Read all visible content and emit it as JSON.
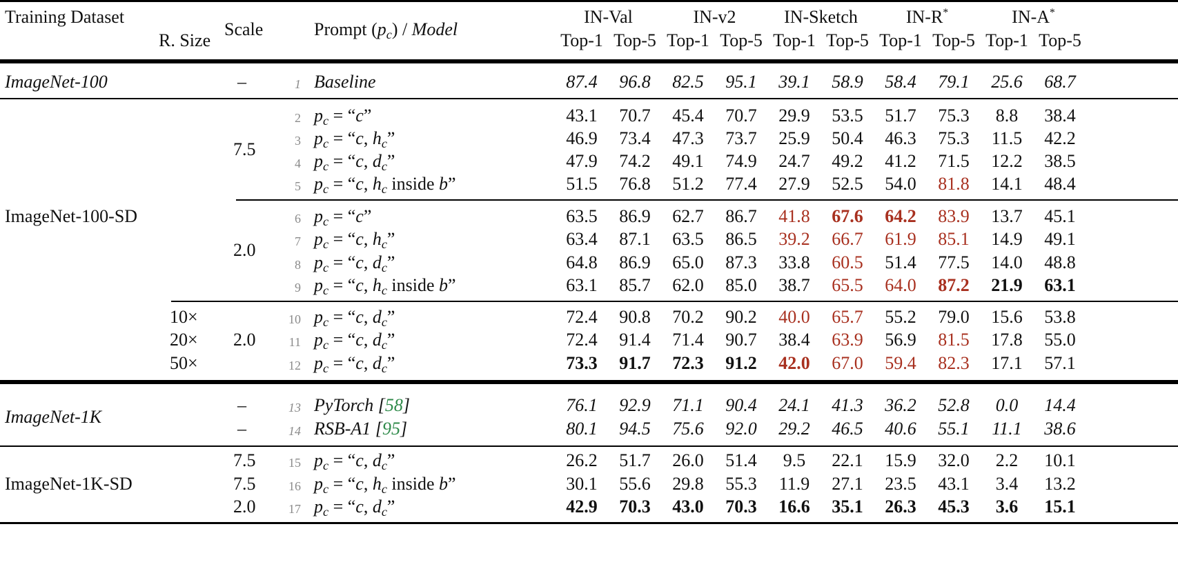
{
  "header": {
    "training_dataset": "Training Dataset",
    "r_size": "R. Size",
    "scale": "Scale",
    "prompt_model_prefix": "Prompt (",
    "prompt_model_var": "p",
    "prompt_model_sub": "c",
    "prompt_model_mid": ") / ",
    "prompt_model_model": "Model",
    "benchmarks": [
      {
        "name": "IN-Val",
        "star": ""
      },
      {
        "name": "IN-v2",
        "star": ""
      },
      {
        "name": "IN-Sketch",
        "star": ""
      },
      {
        "name": "IN-R",
        "star": "*"
      },
      {
        "name": "IN-A",
        "star": "*"
      }
    ],
    "metrics": [
      "Top-1",
      "Top-5",
      "Top-1",
      "Top-5",
      "Top-1",
      "Top-5",
      "Top-1",
      "Top-5",
      "Top-1",
      "Top-5"
    ]
  },
  "groups": [
    {
      "name": "ImageNet-100",
      "italic": true
    },
    {
      "name": "ImageNet-100-SD",
      "italic": false
    },
    {
      "name": "ImageNet-1K",
      "italic": true
    },
    {
      "name": "ImageNet-1K-SD",
      "italic": false
    }
  ],
  "scales": {
    "g1": "–",
    "g2a": "7.5",
    "g2b": "2.0",
    "g2c": "2.0",
    "r13": "–",
    "r14": "–",
    "r15": "7.5",
    "r16": "7.5",
    "r17": "2.0"
  },
  "rsizes": {
    "r10": "10×",
    "r11": "20×",
    "r12": "50×"
  },
  "rows": [
    {
      "n": "1",
      "prompt": "Baseline",
      "kind": "model",
      "italic": true,
      "values": [
        "87.4",
        "96.8",
        "82.5",
        "95.1",
        "39.1",
        "58.9",
        "58.4",
        "79.1",
        "25.6",
        "68.7"
      ],
      "style": [
        "i",
        "i",
        "i",
        "i",
        "i",
        "i",
        "i",
        "i",
        "i",
        "i"
      ]
    },
    {
      "n": "2",
      "prompt": "c",
      "kind": "pc",
      "values": [
        "43.1",
        "70.7",
        "45.4",
        "70.7",
        "29.9",
        "53.5",
        "51.7",
        "75.3",
        "8.8",
        "38.4"
      ],
      "style": [
        "",
        "",
        "",
        "",
        "",
        "",
        "",
        "",
        "",
        ""
      ]
    },
    {
      "n": "3",
      "prompt": "c, h_c",
      "kind": "pc",
      "values": [
        "46.9",
        "73.4",
        "47.3",
        "73.7",
        "25.9",
        "50.4",
        "46.3",
        "75.3",
        "11.5",
        "42.2"
      ],
      "style": [
        "",
        "",
        "",
        "",
        "",
        "",
        "",
        "",
        "",
        ""
      ]
    },
    {
      "n": "4",
      "prompt": "c, d_c",
      "kind": "pc",
      "values": [
        "47.9",
        "74.2",
        "49.1",
        "74.9",
        "24.7",
        "49.2",
        "41.2",
        "71.5",
        "12.2",
        "38.5"
      ],
      "style": [
        "",
        "",
        "",
        "",
        "",
        "",
        "",
        "",
        "",
        ""
      ]
    },
    {
      "n": "5",
      "prompt": "c, h_c inside b",
      "kind": "pc",
      "values": [
        "51.5",
        "76.8",
        "51.2",
        "77.4",
        "27.9",
        "52.5",
        "54.0",
        "81.8",
        "14.1",
        "48.4"
      ],
      "style": [
        "",
        "",
        "",
        "",
        "",
        "",
        "",
        "r",
        "",
        ""
      ]
    },
    {
      "n": "6",
      "prompt": "c",
      "kind": "pc",
      "values": [
        "63.5",
        "86.9",
        "62.7",
        "86.7",
        "41.8",
        "67.6",
        "64.2",
        "83.9",
        "13.7",
        "45.1"
      ],
      "style": [
        "",
        "",
        "",
        "",
        "r",
        "rb",
        "rb",
        "r",
        "",
        ""
      ]
    },
    {
      "n": "7",
      "prompt": "c, h_c",
      "kind": "pc",
      "values": [
        "63.4",
        "87.1",
        "63.5",
        "86.5",
        "39.2",
        "66.7",
        "61.9",
        "85.1",
        "14.9",
        "49.1"
      ],
      "style": [
        "",
        "",
        "",
        "",
        "r",
        "r",
        "r",
        "r",
        "",
        ""
      ]
    },
    {
      "n": "8",
      "prompt": "c, d_c",
      "kind": "pc",
      "values": [
        "64.8",
        "86.9",
        "65.0",
        "87.3",
        "33.8",
        "60.5",
        "51.4",
        "77.5",
        "14.0",
        "48.8"
      ],
      "style": [
        "",
        "",
        "",
        "",
        "",
        "r",
        "",
        "",
        "",
        ""
      ]
    },
    {
      "n": "9",
      "prompt": "c, h_c inside b",
      "kind": "pc",
      "values": [
        "63.1",
        "85.7",
        "62.0",
        "85.0",
        "38.7",
        "65.5",
        "64.0",
        "87.2",
        "21.9",
        "63.1"
      ],
      "style": [
        "",
        "",
        "",
        "",
        "",
        "r",
        "r",
        "rb",
        "b",
        "b"
      ]
    },
    {
      "n": "10",
      "prompt": "c, d_c",
      "kind": "pc",
      "values": [
        "72.4",
        "90.8",
        "70.2",
        "90.2",
        "40.0",
        "65.7",
        "55.2",
        "79.0",
        "15.6",
        "53.8"
      ],
      "style": [
        "",
        "",
        "",
        "",
        "r",
        "r",
        "",
        "",
        "",
        ""
      ]
    },
    {
      "n": "11",
      "prompt": "c, d_c",
      "kind": "pc",
      "values": [
        "72.4",
        "91.4",
        "71.4",
        "90.7",
        "38.4",
        "63.9",
        "56.9",
        "81.5",
        "17.8",
        "55.0"
      ],
      "style": [
        "",
        "",
        "",
        "",
        "",
        "r",
        "",
        "r",
        "",
        ""
      ]
    },
    {
      "n": "12",
      "prompt": "c, d_c",
      "kind": "pc",
      "values": [
        "73.3",
        "91.7",
        "72.3",
        "91.2",
        "42.0",
        "67.0",
        "59.4",
        "82.3",
        "17.1",
        "57.1"
      ],
      "style": [
        "b",
        "b",
        "b",
        "b",
        "rb",
        "r",
        "r",
        "r",
        "",
        ""
      ]
    },
    {
      "n": "13",
      "prompt": "PyTorch",
      "ref": "58",
      "kind": "model",
      "italic": true,
      "values": [
        "76.1",
        "92.9",
        "71.1",
        "90.4",
        "24.1",
        "41.3",
        "36.2",
        "52.8",
        "0.0",
        "14.4"
      ],
      "style": [
        "i",
        "i",
        "i",
        "i",
        "i",
        "i",
        "i",
        "i",
        "i",
        "i"
      ]
    },
    {
      "n": "14",
      "prompt": "RSB-A1",
      "ref": "95",
      "kind": "model",
      "italic": true,
      "values": [
        "80.1",
        "94.5",
        "75.6",
        "92.0",
        "29.2",
        "46.5",
        "40.6",
        "55.1",
        "11.1",
        "38.6"
      ],
      "style": [
        "i",
        "i",
        "i",
        "i",
        "i",
        "i",
        "i",
        "i",
        "i",
        "i"
      ]
    },
    {
      "n": "15",
      "prompt": "c, d_c",
      "kind": "pc",
      "values": [
        "26.2",
        "51.7",
        "26.0",
        "51.4",
        "9.5",
        "22.1",
        "15.9",
        "32.0",
        "2.2",
        "10.1"
      ],
      "style": [
        "",
        "",
        "",
        "",
        "",
        "",
        "",
        "",
        "",
        ""
      ]
    },
    {
      "n": "16",
      "prompt": "c, h_c inside b",
      "kind": "pc",
      "values": [
        "30.1",
        "55.6",
        "29.8",
        "55.3",
        "11.9",
        "27.1",
        "23.5",
        "43.1",
        "3.4",
        "13.2"
      ],
      "style": [
        "",
        "",
        "",
        "",
        "",
        "",
        "",
        "",
        "",
        ""
      ]
    },
    {
      "n": "17",
      "prompt": "c, d_c",
      "kind": "pc",
      "values": [
        "42.9",
        "70.3",
        "43.0",
        "70.3",
        "16.6",
        "35.1",
        "26.3",
        "45.3",
        "3.6",
        "15.1"
      ],
      "style": [
        "b",
        "b",
        "b",
        "b",
        "b",
        "b",
        "b",
        "b",
        "b",
        "b"
      ]
    }
  ],
  "colors": {
    "highlight_red": "#a8301f",
    "citation_green": "#2f8a4a",
    "line_number_gray": "#8a8a8a"
  },
  "prompt_tokens": {
    "pc_var": "p",
    "pc_sub": "c",
    "eq": " = ",
    "open_q": "“",
    "close_q": "”"
  }
}
